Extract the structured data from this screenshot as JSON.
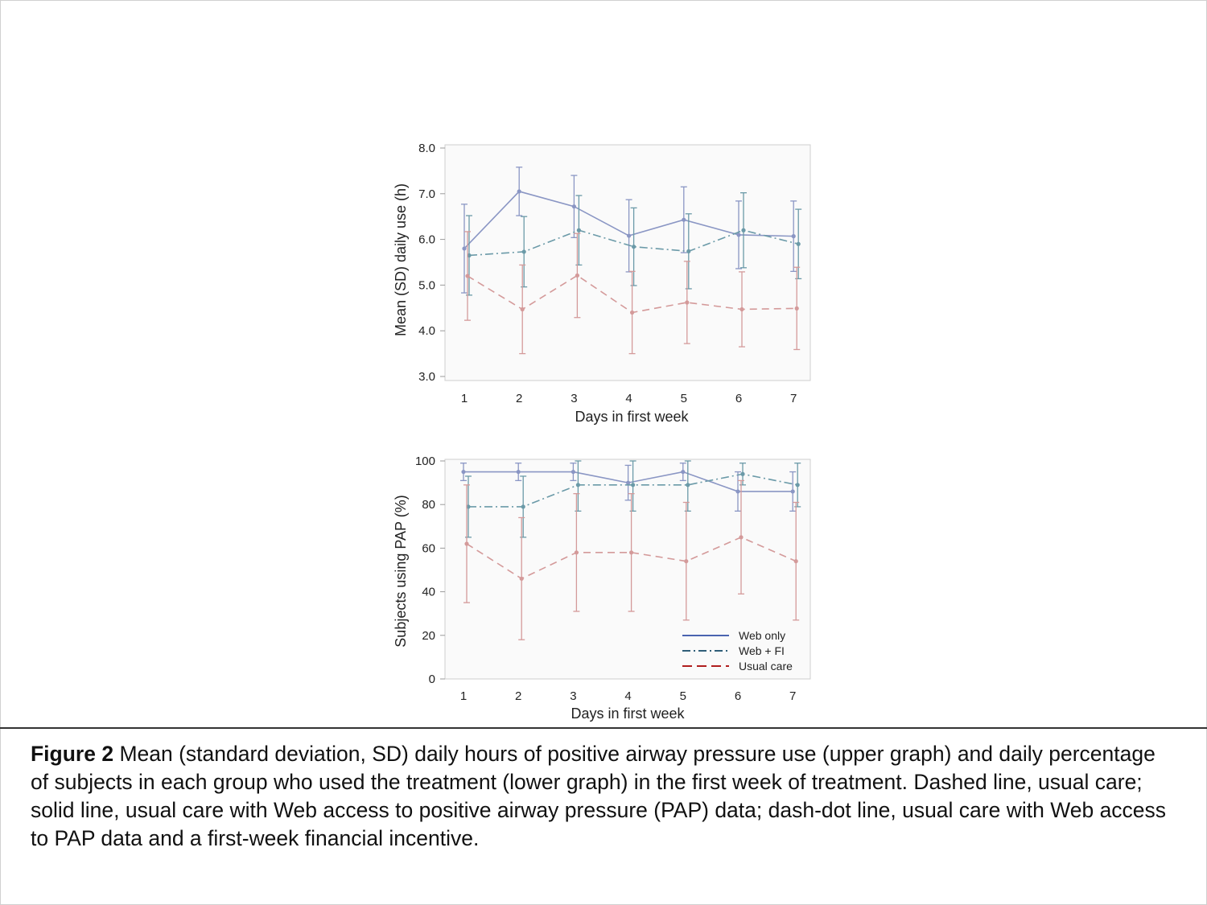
{
  "chart_data": [
    {
      "type": "line",
      "title": "",
      "xlabel": "Days in first week",
      "ylabel": "Mean (SD) daily use (h)",
      "categories": [
        "1",
        "2",
        "3",
        "4",
        "5",
        "6",
        "7"
      ],
      "ylim": [
        3.0,
        8.0
      ],
      "yticks": [
        "3.0",
        "4.0",
        "5.0",
        "6.0",
        "7.0",
        "8.0"
      ],
      "series": [
        {
          "name": "Web only",
          "style": "solid",
          "color": "#8a96c4",
          "values": [
            5.8,
            7.05,
            6.72,
            6.08,
            6.43,
            6.1,
            6.07
          ],
          "sd": [
            0.97,
            0.53,
            0.68,
            0.79,
            0.72,
            0.74,
            0.77
          ]
        },
        {
          "name": "Web + FI",
          "style": "dashdot",
          "color": "#6b9aa8",
          "values": [
            5.65,
            5.73,
            6.2,
            5.84,
            5.74,
            6.2,
            5.9
          ],
          "sd": [
            0.87,
            0.77,
            0.76,
            0.85,
            0.82,
            0.82,
            0.76
          ]
        },
        {
          "name": "Usual care",
          "style": "dashed",
          "color": "#d49a9a",
          "values": [
            5.2,
            4.47,
            5.21,
            4.4,
            4.62,
            4.47,
            4.49
          ],
          "sd": [
            0.97,
            0.97,
            0.92,
            0.9,
            0.9,
            0.82,
            0.9
          ]
        }
      ]
    },
    {
      "type": "line",
      "title": "",
      "xlabel": "Days in first week",
      "ylabel": "Subjects using PAP (%)",
      "categories": [
        "1",
        "2",
        "3",
        "4",
        "5",
        "6",
        "7"
      ],
      "ylim": [
        0,
        100
      ],
      "yticks": [
        "0",
        "20",
        "40",
        "60",
        "80",
        "100"
      ],
      "legend_position": "bottom-right",
      "series": [
        {
          "name": "Web only",
          "style": "solid",
          "color": "#8a96c4",
          "values": [
            95,
            95,
            95,
            90,
            95,
            86,
            86
          ],
          "sd": [
            4,
            4,
            4,
            8,
            4,
            9,
            9
          ]
        },
        {
          "name": "Web + FI",
          "style": "dashdot",
          "color": "#6b9aa8",
          "values": [
            79,
            79,
            89,
            89,
            89,
            94,
            89
          ],
          "sd": [
            14,
            14,
            12,
            12,
            12,
            5,
            10
          ]
        },
        {
          "name": "Usual care",
          "style": "dashed",
          "color": "#d49a9a",
          "values": [
            62,
            46,
            58,
            58,
            54,
            65,
            54
          ],
          "sd": [
            27,
            28,
            27,
            27,
            27,
            26,
            27
          ]
        }
      ]
    }
  ],
  "legend": {
    "items": [
      "Web only",
      "Web + FI",
      "Usual care"
    ],
    "colors": [
      "#4a64b0",
      "#2f5e78",
      "#b01e1e"
    ]
  },
  "caption": {
    "label": "Figure 2",
    "text": " Mean (standard deviation, SD) daily hours of positive airway pressure use (upper graph) and daily percentage of subjects in each group who used the treatment (lower graph) in the first week of treatment. Dashed line, usual care; solid line, usual care with Web access to positive airway pressure (PAP) data; dash-dot line, usual care with Web access to PAP data and a first-week financial incentive."
  }
}
